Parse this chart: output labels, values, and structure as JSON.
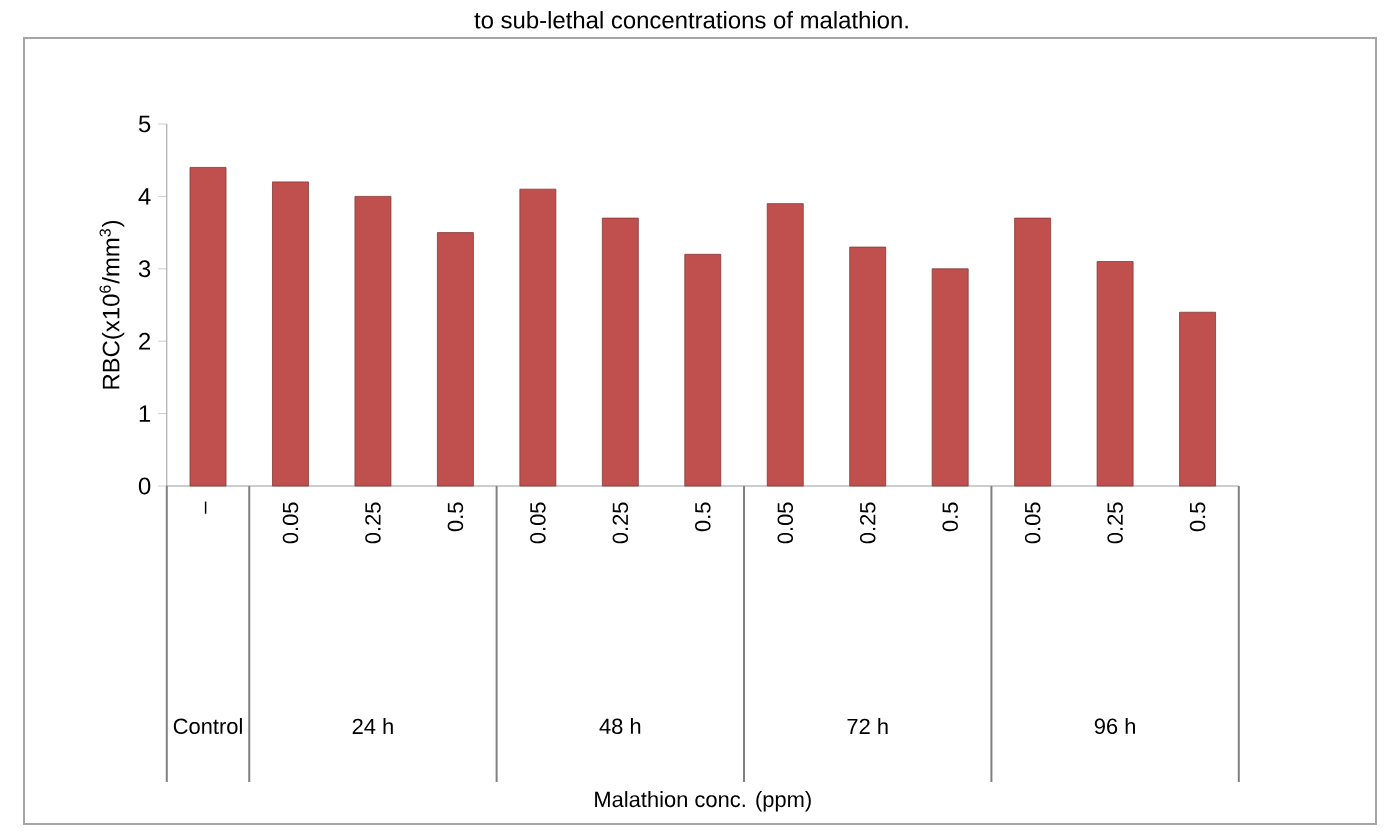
{
  "chart_data": {
    "type": "bar",
    "title": "to sub-lethal concentrations of malathion.",
    "ylabel": "RBC(x10$^{6}$/mm$^{3}$)",
    "categories": [
      "–",
      "0.05",
      "0.25",
      "0.5",
      "0.05",
      "0.25",
      "0.5",
      "0.05",
      "0.25",
      "0.5",
      "0.05",
      "0.25",
      "0.5"
    ],
    "values": [
      4.4,
      4.2,
      4.0,
      3.5,
      4.1,
      3.7,
      3.2,
      3.9,
      3.3,
      3.0,
      3.7,
      3.1,
      2.4
    ],
    "color": "#c0504d",
    "ylim": [
      0,
      5
    ],
    "yticks": [
      0,
      1,
      2,
      3,
      4,
      5
    ],
    "annotations": [
      "Control",
      "24 h",
      "48 h",
      "72 h",
      "96 h",
      "Malathion conc. (ppm)"
    ]
  }
}
